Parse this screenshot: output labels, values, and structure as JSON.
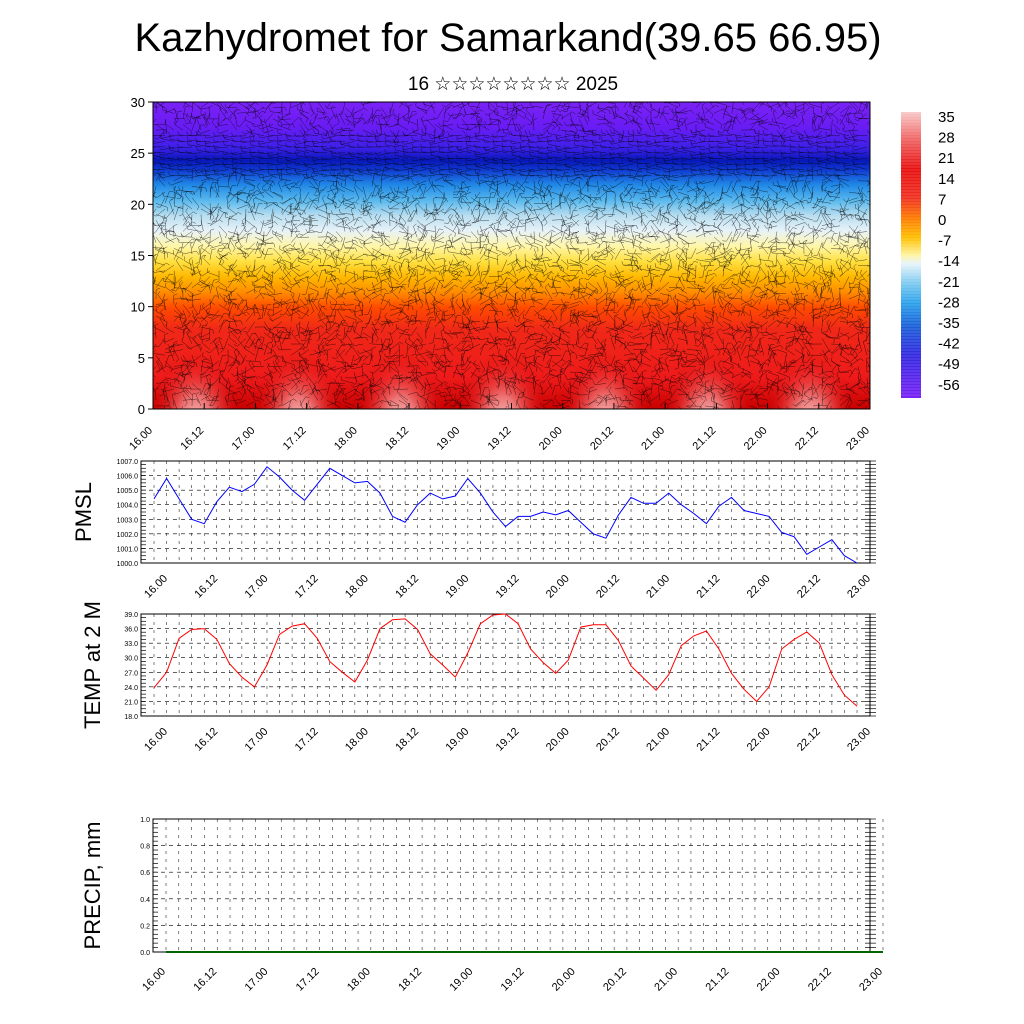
{
  "title": "Kazhydromet for Samarkand(39.65 66.95)",
  "subtitle": "16 ☆☆☆☆☆☆☆☆ 2025",
  "colors": {
    "pmsl_line": "#0000ff",
    "temp_line": "#ff0000",
    "precip_line": "#006400",
    "grid": "#000000"
  },
  "x_tick_labels": [
    "16.00",
    "16.12",
    "17.00",
    "17.12",
    "18.00",
    "18.12",
    "19.00",
    "19.12",
    "20.00",
    "20.12",
    "21.00",
    "21.12",
    "22.00",
    "22.12",
    "23.00"
  ],
  "chart_data": [
    {
      "type": "heatmap",
      "name": "cross-section",
      "description_axis": "height levels 0-30 vs time",
      "xlim": [
        0,
        168
      ],
      "ylim": [
        0,
        30
      ],
      "y_ticks": [
        0,
        5,
        10,
        15,
        20,
        25,
        30
      ],
      "x_ticks_hours": [
        0,
        12,
        24,
        36,
        48,
        60,
        72,
        84,
        96,
        108,
        120,
        132,
        144,
        156,
        168
      ],
      "colorbar_labels": [
        "35",
        "28",
        "21",
        "14",
        "7",
        "0",
        "-7",
        "-14",
        "-21",
        "-28",
        "-35",
        "-42",
        "-49",
        "-56"
      ],
      "colorbar_values": [
        35,
        28,
        21,
        14,
        7,
        0,
        -7,
        -14,
        -21,
        -28,
        -35,
        -42,
        -49,
        -56
      ]
    },
    {
      "type": "line",
      "name": "PMSL",
      "ylabel": "PMSL",
      "ylim": [
        1000,
        1007
      ],
      "y_ticks": [
        1000,
        1001,
        1002,
        1003,
        1004,
        1005,
        1006,
        1007
      ],
      "y_tick_labels": [
        "1000.0",
        "1001.0",
        "1002.0",
        "1003.0",
        "1004.0",
        "1005.0",
        "1006.0",
        "1007.0"
      ],
      "x_hours": [
        0,
        3,
        6,
        9,
        12,
        15,
        18,
        21,
        24,
        27,
        30,
        33,
        36,
        39,
        42,
        45,
        48,
        51,
        54,
        57,
        60,
        63,
        66,
        69,
        72,
        75,
        78,
        81,
        84,
        87,
        90,
        93,
        96,
        99,
        102,
        105,
        108,
        111,
        114,
        117,
        120,
        123,
        126,
        129,
        132,
        135,
        138,
        141,
        144,
        147,
        150,
        153,
        156,
        159,
        162,
        165,
        168
      ],
      "values": [
        1004.4,
        1005.8,
        1004.4,
        1003.0,
        1002.7,
        1004.2,
        1005.2,
        1004.9,
        1005.4,
        1006.6,
        1005.9,
        1005.0,
        1004.3,
        1005.4,
        1006.5,
        1006.0,
        1005.5,
        1005.6,
        1004.8,
        1003.2,
        1002.8,
        1004.0,
        1004.8,
        1004.4,
        1004.6,
        1005.8,
        1004.8,
        1003.5,
        1002.5,
        1003.2,
        1003.2,
        1003.5,
        1003.3,
        1003.6,
        1002.8,
        1002.0,
        1001.7,
        1003.3,
        1004.5,
        1004.1,
        1004.1,
        1004.8,
        1004.0,
        1003.4,
        1002.7,
        1003.9,
        1004.5,
        1003.6,
        1003.4,
        1003.2,
        1002.1,
        1001.8,
        1000.6,
        1001.1,
        1001.6,
        1000.5,
        1000.0
      ],
      "x_tick_labels_ref": "x_tick_labels"
    },
    {
      "type": "line",
      "name": "TEMP at 2 M",
      "ylabel": "TEMP at 2 M",
      "ylim": [
        18,
        39
      ],
      "y_ticks": [
        18,
        21,
        24,
        27,
        30,
        33,
        36,
        39
      ],
      "y_tick_labels": [
        "18.0",
        "21.0",
        "24.0",
        "27.0",
        "30.0",
        "33.0",
        "36.0",
        "39.0"
      ],
      "x_hours": [
        0,
        3,
        6,
        9,
        12,
        15,
        18,
        21,
        24,
        27,
        30,
        33,
        36,
        39,
        42,
        45,
        48,
        51,
        54,
        57,
        60,
        63,
        66,
        69,
        72,
        75,
        78,
        81,
        84,
        87,
        90,
        93,
        96,
        99,
        102,
        105,
        108,
        111,
        114,
        117,
        120,
        123,
        126,
        129,
        132,
        135,
        138,
        141,
        144,
        147,
        150,
        153,
        156,
        159,
        162,
        165,
        168
      ],
      "values": [
        23.8,
        27.0,
        34.0,
        35.8,
        36.0,
        33.8,
        28.8,
        26.0,
        24.0,
        28.5,
        34.8,
        36.5,
        37.0,
        34.0,
        29.2,
        27.0,
        25.0,
        29.5,
        36.0,
        37.8,
        38.0,
        35.8,
        30.8,
        28.5,
        26.0,
        31.0,
        37.0,
        38.8,
        39.0,
        37.0,
        31.8,
        29.0,
        26.8,
        29.5,
        36.3,
        36.8,
        36.8,
        33.5,
        28.3,
        25.8,
        23.3,
        26.5,
        32.5,
        34.5,
        35.5,
        31.8,
        26.8,
        23.5,
        21.0,
        24.0,
        31.8,
        33.8,
        35.3,
        33.0,
        26.5,
        22.3,
        20.0
      ],
      "x_tick_labels_ref": "x_tick_labels"
    },
    {
      "type": "line",
      "name": "PRECIP, mm",
      "ylabel": "PRECIP, mm",
      "ylim": [
        0,
        1
      ],
      "y_ticks": [
        0,
        0.2,
        0.4,
        0.6,
        0.8,
        1.0
      ],
      "y_tick_labels": [
        "0.0",
        "0.2",
        "0.4",
        "0.6",
        "0.8",
        "1.0"
      ],
      "x_hours": [
        0,
        168
      ],
      "values": [
        0,
        0
      ],
      "x_tick_labels_ref": "x_tick_labels"
    }
  ]
}
